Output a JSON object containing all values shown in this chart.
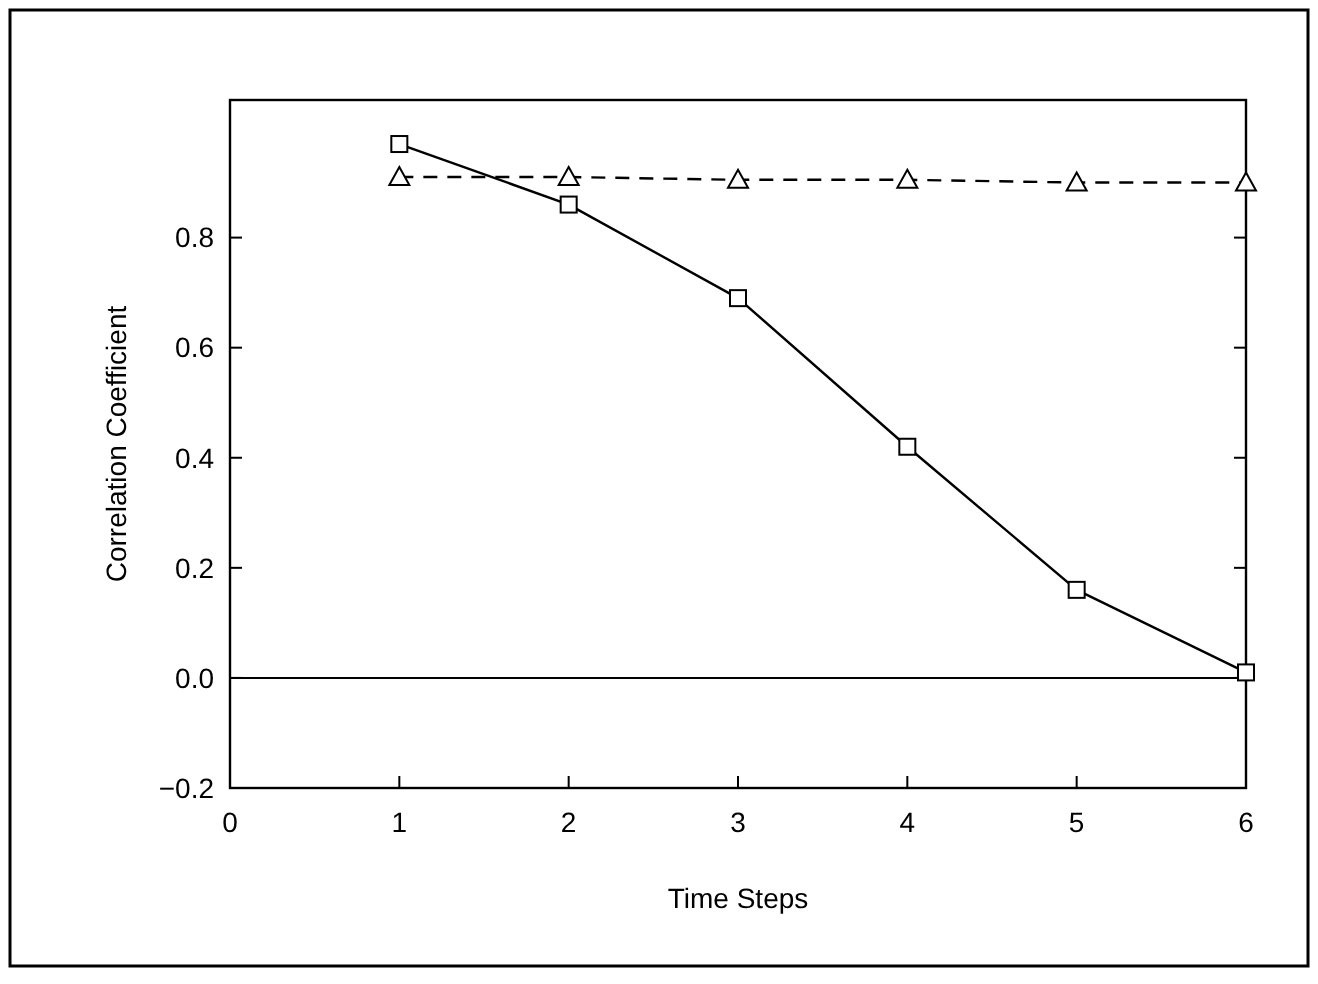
{
  "chart_data": {
    "type": "line",
    "xlabel": "Time Steps",
    "ylabel": "Correlation Coefficient",
    "x": [
      1,
      2,
      3,
      4,
      5,
      6
    ],
    "series": [
      {
        "color": "#000000",
        "values": [
          0.97,
          0.86,
          0.69,
          0.42,
          0.16,
          0.01
        ],
        "marker": "square",
        "line_style": "solid"
      },
      {
        "color": "#000000",
        "values": [
          0.91,
          0.91,
          0.905,
          0.905,
          0.9,
          0.9
        ],
        "marker": "triangle",
        "line_style": "dashed"
      }
    ],
    "xlim": [
      0,
      6
    ],
    "xticks": [
      0,
      1,
      2,
      3,
      4,
      5,
      6
    ],
    "ylim": [
      -0.2,
      1.05
    ],
    "yticks": [
      {
        "value": -0.2,
        "label": "−0.2"
      },
      {
        "value": 0,
        "label": "0.0"
      },
      {
        "value": 0.2,
        "label": "0.2"
      },
      {
        "value": 0.4,
        "label": "0.4"
      },
      {
        "value": 0.6,
        "label": "0.6"
      },
      {
        "value": 0.8,
        "label": "0.8"
      }
    ],
    "ref_lines": [
      {
        "axis": "y",
        "value": 0,
        "color": "#000000",
        "line_style": "solid"
      }
    ],
    "grid": false
  }
}
